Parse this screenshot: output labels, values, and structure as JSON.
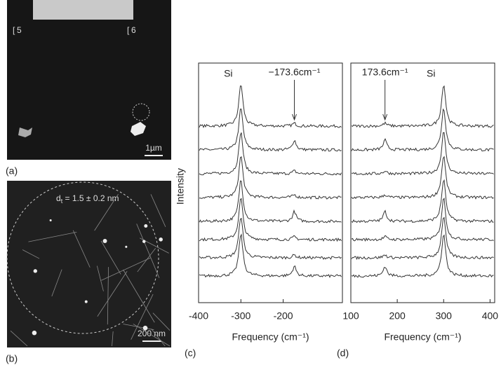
{
  "panels": {
    "a": {
      "label": "(a)",
      "markers": [
        "5",
        "6"
      ],
      "scale_bar": "1µm"
    },
    "b": {
      "label": "(b)",
      "annotation": "d",
      "annotation_sub": "t",
      "annotation_rest": " = 1.5 ± 0.2 nm",
      "scale_bar": "200 nm"
    },
    "c": {
      "type": "line",
      "label": "(c)",
      "ylabel": "Intensity",
      "xlabel": "Frequency (cm⁻¹)",
      "xlim": [
        -400,
        -60
      ],
      "xticks": [
        -400,
        -300,
        -200
      ],
      "peak_label": "Si",
      "si_peak": -300,
      "arrow_label": "−173.6cm⁻¹",
      "arrow_x": -173.6
    },
    "d": {
      "type": "line",
      "label": "(d)",
      "xlabel": "Frequency (cm⁻¹)",
      "xlim": [
        100,
        410
      ],
      "xticks": [
        100,
        200,
        300,
        400
      ],
      "peak_label": "Si",
      "si_peak": 300,
      "arrow_label": "173.6cm⁻¹",
      "arrow_x": 173.6
    }
  }
}
